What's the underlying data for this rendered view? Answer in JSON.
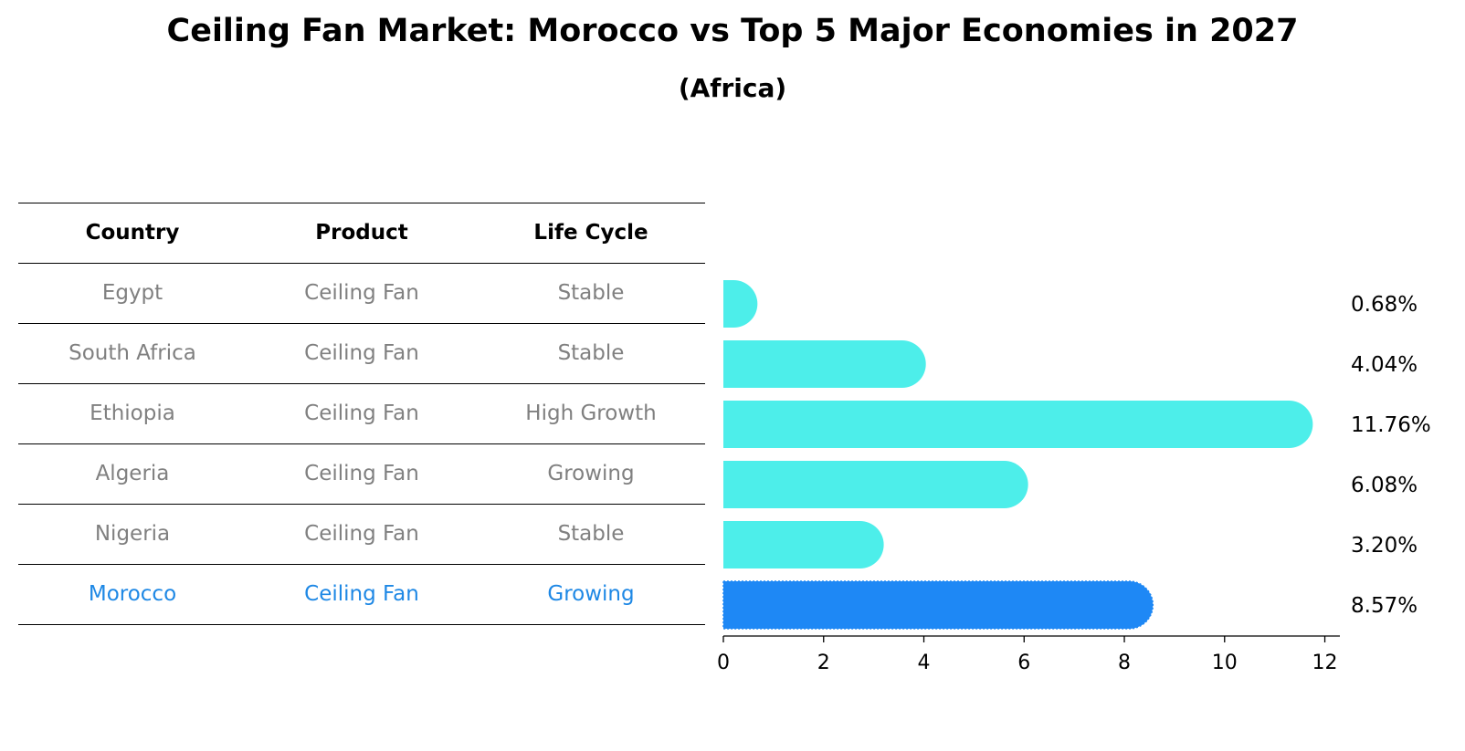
{
  "title": "Ceiling Fan Market: Morocco vs Top 5 Major Economies in 2027",
  "subtitle": "(Africa)",
  "table": {
    "headers": [
      "Country",
      "Product",
      "Life Cycle"
    ],
    "rows": [
      {
        "country": "Egypt",
        "product": "Ceiling Fan",
        "life_cycle": "Stable"
      },
      {
        "country": "South Africa",
        "product": "Ceiling Fan",
        "life_cycle": "Stable"
      },
      {
        "country": "Ethiopia",
        "product": "Ceiling Fan",
        "life_cycle": "High Growth"
      },
      {
        "country": "Algeria",
        "product": "Ceiling Fan",
        "life_cycle": "Growing"
      },
      {
        "country": "Nigeria",
        "product": "Ceiling Fan",
        "life_cycle": "Stable"
      },
      {
        "country": "Morocco",
        "product": "Ceiling Fan",
        "life_cycle": "Growing"
      }
    ],
    "highlight_country": "Morocco"
  },
  "colors": {
    "bar": "#4deeea",
    "highlight": "#1e88f5",
    "muted_text": "#808080",
    "highlight_text": "#1e88e5"
  },
  "chart_data": {
    "type": "bar",
    "orientation": "horizontal",
    "categories": [
      "Egypt",
      "South Africa",
      "Ethiopia",
      "Algeria",
      "Nigeria",
      "Morocco"
    ],
    "values": [
      0.68,
      4.04,
      11.76,
      6.08,
      3.2,
      8.57
    ],
    "value_labels": [
      "0.68%",
      "4.04%",
      "11.76%",
      "6.08%",
      "3.20%",
      "8.57%"
    ],
    "xlim": [
      0,
      12.3
    ],
    "xticks": [
      0,
      2,
      4,
      6,
      8,
      10,
      12
    ],
    "highlight": "Morocco"
  }
}
